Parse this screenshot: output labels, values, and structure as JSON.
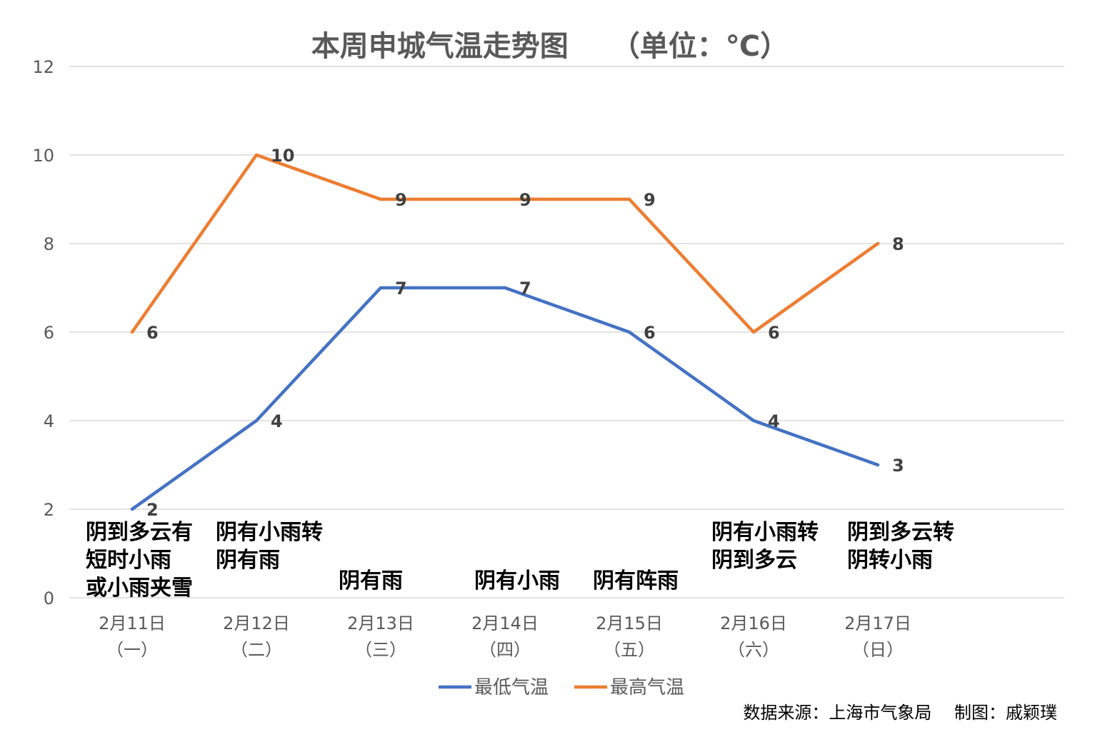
{
  "chart_data": {
    "type": "line",
    "title": "本周申城气温走势图　　（单位：℃）",
    "categories": [
      [
        "2月11日",
        "（一）"
      ],
      [
        "2月12日",
        "（二）"
      ],
      [
        "2月13日",
        "（三）"
      ],
      [
        "2月14日",
        "（四）"
      ],
      [
        "2月15日",
        "（五）"
      ],
      [
        "2月16日",
        "（六）"
      ],
      [
        "2月17日",
        "（日）"
      ]
    ],
    "series": [
      {
        "name": "最低气温",
        "color": "#4472C4",
        "values": [
          2,
          4,
          7,
          7,
          6,
          4,
          3
        ]
      },
      {
        "name": "最高气温",
        "color": "#ED7D31",
        "values": [
          6,
          10,
          9,
          9,
          9,
          6,
          8
        ]
      }
    ],
    "ylim": [
      0,
      12
    ],
    "yticks": [
      0,
      2,
      4,
      6,
      8,
      10,
      12
    ],
    "grid": true,
    "legend": "bottom",
    "annotations": [
      [
        "阴到多云有",
        "短时小雨",
        "或小雨夹雪"
      ],
      [
        "阴有小雨转",
        "阴有雨"
      ],
      [
        "阴有雨"
      ],
      [
        "阴有小雨"
      ],
      [
        "阴有阵雨"
      ],
      [
        "阴有小雨转",
        "阴到多云"
      ],
      [
        "阴到多云转",
        "阴转小雨"
      ]
    ],
    "footer": "数据来源：上海市气象局　 制图：戚颖璞"
  }
}
